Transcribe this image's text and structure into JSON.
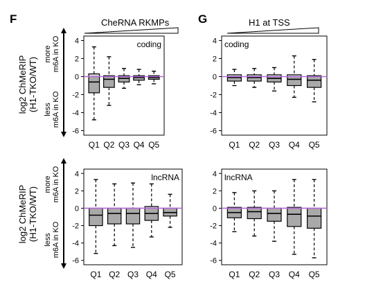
{
  "panels": {
    "left_letter": "F",
    "right_letter": "G",
    "left_header": "CheRNA RKMPs",
    "right_header": "H1 at TSS",
    "ylabel_line1": "log2 ChMeRIP",
    "ylabel_line2": "(H1-TKO/WT)",
    "more_line1": "more",
    "more_line2": "m6A in KO",
    "less_line1": "less",
    "less_line2": "m6A in KO"
  },
  "colors": {
    "box_fill": "#a9a9a9",
    "box_fill_light": "#d3d3d3",
    "zero_line": "#b469d6",
    "axis": "#000000"
  },
  "chart_data": [
    {
      "type": "box",
      "panel": "F",
      "label": "coding",
      "categories": [
        "Q1",
        "Q2",
        "Q3",
        "Q4",
        "Q5"
      ],
      "ylim": [
        -6.5,
        4.5
      ],
      "yticks": [
        4,
        2,
        0,
        -2,
        -4,
        -6
      ],
      "boxes": [
        {
          "whisker_low": -4.8,
          "q1": -1.8,
          "median": -0.6,
          "q3": 0.3,
          "whisker_high": 3.3
        },
        {
          "whisker_low": -3.2,
          "q1": -1.2,
          "median": -0.3,
          "q3": 0.1,
          "whisker_high": 2.2
        },
        {
          "whisker_low": -1.3,
          "q1": -0.6,
          "median": -0.2,
          "q3": 0.1,
          "whisker_high": 0.9
        },
        {
          "whisker_low": -0.9,
          "q1": -0.4,
          "median": -0.1,
          "q3": 0.1,
          "whisker_high": 0.8
        },
        {
          "whisker_low": -0.8,
          "q1": -0.3,
          "median": -0.1,
          "q3": 0.1,
          "whisker_high": 0.6
        }
      ]
    },
    {
      "type": "box",
      "panel": "G",
      "label": "coding",
      "categories": [
        "Q1",
        "Q2",
        "Q3",
        "Q4",
        "Q5"
      ],
      "ylim": [
        -6.5,
        4.5
      ],
      "yticks": [
        4,
        2,
        0,
        -2,
        -4,
        -6
      ],
      "boxes": [
        {
          "whisker_low": -1.0,
          "q1": -0.5,
          "median": -0.1,
          "q3": 0.2,
          "whisker_high": 0.8
        },
        {
          "whisker_low": -1.2,
          "q1": -0.5,
          "median": -0.1,
          "q3": 0.2,
          "whisker_high": 0.9
        },
        {
          "whisker_low": -1.6,
          "q1": -0.6,
          "median": -0.2,
          "q3": 0.2,
          "whisker_high": 1.0
        },
        {
          "whisker_low": -2.3,
          "q1": -1.0,
          "median": -0.3,
          "q3": 0.2,
          "whisker_high": 2.3
        },
        {
          "whisker_low": -2.8,
          "q1": -1.2,
          "median": -0.4,
          "q3": 0.1,
          "whisker_high": 1.9
        }
      ]
    },
    {
      "type": "box",
      "panel": "F",
      "label": "lncRNA",
      "categories": [
        "Q1",
        "Q2",
        "Q3",
        "Q4",
        "Q5"
      ],
      "ylim": [
        -6.5,
        4.5
      ],
      "yticks": [
        4,
        2,
        0,
        -2,
        -4,
        -6
      ],
      "boxes": [
        {
          "whisker_low": -5.2,
          "q1": -2.0,
          "median": -0.8,
          "q3": 0.0,
          "whisker_high": 3.3
        },
        {
          "whisker_low": -4.3,
          "q1": -1.8,
          "median": -0.6,
          "q3": 0.0,
          "whisker_high": 2.8
        },
        {
          "whisker_low": -4.5,
          "q1": -1.8,
          "median": -0.6,
          "q3": 0.0,
          "whisker_high": 2.9
        },
        {
          "whisker_low": -3.3,
          "q1": -1.4,
          "median": -0.6,
          "q3": 0.2,
          "whisker_high": 2.8
        },
        {
          "whisker_low": -2.2,
          "q1": -0.9,
          "median": -0.5,
          "q3": 0.0,
          "whisker_high": 1.6
        }
      ]
    },
    {
      "type": "box",
      "panel": "G",
      "label": "lncRNA",
      "categories": [
        "Q1",
        "Q2",
        "Q3",
        "Q4",
        "Q5"
      ],
      "ylim": [
        -6.5,
        4.5
      ],
      "yticks": [
        4,
        2,
        0,
        -2,
        -4,
        -6
      ],
      "boxes": [
        {
          "whisker_low": -2.7,
          "q1": -1.1,
          "median": -0.5,
          "q3": 0.1,
          "whisker_high": 1.8
        },
        {
          "whisker_low": -3.2,
          "q1": -1.2,
          "median": -0.4,
          "q3": 0.1,
          "whisker_high": 2.0
        },
        {
          "whisker_low": -3.8,
          "q1": -1.5,
          "median": -0.6,
          "q3": 0.0,
          "whisker_high": 2.0
        },
        {
          "whisker_low": -5.3,
          "q1": -2.1,
          "median": -0.7,
          "q3": 0.1,
          "whisker_high": 3.3
        },
        {
          "whisker_low": -5.7,
          "q1": -2.3,
          "median": -0.9,
          "q3": 0.0,
          "whisker_high": 3.3
        }
      ]
    }
  ]
}
